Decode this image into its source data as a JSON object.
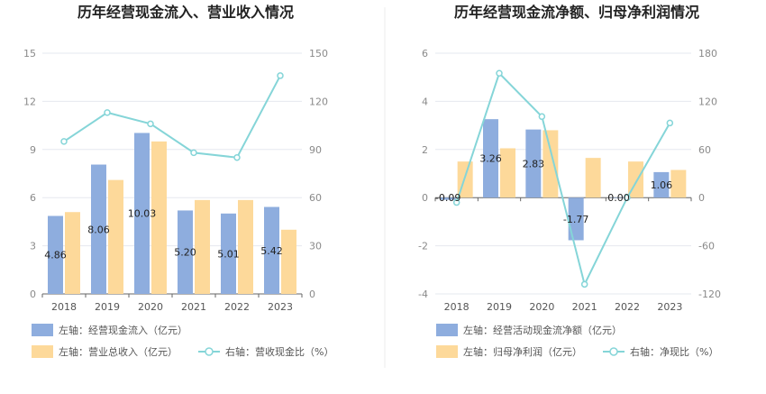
{
  "chart_data": [
    {
      "type": "bar+line",
      "title": "历年经营现金流入、营业收入情况",
      "categories": [
        "2018",
        "2019",
        "2020",
        "2021",
        "2022",
        "2023"
      ],
      "left_axis": {
        "ylim": [
          0,
          15
        ],
        "ticks": [
          "0",
          "3",
          "6",
          "9",
          "12",
          "15"
        ]
      },
      "right_axis": {
        "ylim": [
          0,
          150
        ],
        "ticks": [
          "0",
          "30",
          "60",
          "90",
          "120",
          "150"
        ]
      },
      "series": [
        {
          "name": "左轴：经营现金流入（亿元）",
          "kind": "bar",
          "axis": "left",
          "color": "#8eadde",
          "values": [
            4.86,
            8.06,
            10.03,
            5.2,
            5.01,
            5.42
          ],
          "labels": [
            "4.86",
            "8.06",
            "10.03",
            "5.20",
            "5.01",
            "5.42"
          ]
        },
        {
          "name": "左轴：营业总收入（亿元）",
          "kind": "bar",
          "axis": "left",
          "color": "#fdd99a",
          "values": [
            5.1,
            7.1,
            9.5,
            5.85,
            5.85,
            4.0
          ]
        },
        {
          "name": "右轴：营收现金比（%）",
          "kind": "line",
          "axis": "right",
          "color": "#85d5d8",
          "values": [
            95,
            113,
            106,
            88,
            85,
            136
          ]
        }
      ]
    },
    {
      "type": "bar+line",
      "title": "历年经营现金流净额、归母净利润情况",
      "categories": [
        "2018",
        "2019",
        "2020",
        "2021",
        "2022",
        "2023"
      ],
      "left_axis": {
        "ylim": [
          -4,
          6
        ],
        "ticks": [
          "-4",
          "-2",
          "0",
          "2",
          "4",
          "6"
        ]
      },
      "right_axis": {
        "ylim": [
          -120,
          180
        ],
        "ticks": [
          "-120",
          "-60",
          "0",
          "60",
          "120",
          "180"
        ]
      },
      "series": [
        {
          "name": "左轴：经营活动现金流净额（亿元）",
          "kind": "bar",
          "axis": "left",
          "color": "#8eadde",
          "values": [
            -0.09,
            3.26,
            2.83,
            -1.77,
            0.0,
            1.06
          ],
          "labels": [
            "-0.09",
            "3.26",
            "2.83",
            "-1.77",
            "0.00",
            "1.06"
          ]
        },
        {
          "name": "左轴：归母净利润（亿元）",
          "kind": "bar",
          "axis": "left",
          "color": "#fdd99a",
          "values": [
            1.5,
            2.05,
            2.8,
            1.65,
            1.5,
            1.15
          ]
        },
        {
          "name": "右轴：净现比（%）",
          "kind": "line",
          "axis": "right",
          "color": "#85d5d8",
          "values": [
            -6,
            155,
            101,
            -108,
            0,
            93
          ]
        }
      ]
    }
  ]
}
